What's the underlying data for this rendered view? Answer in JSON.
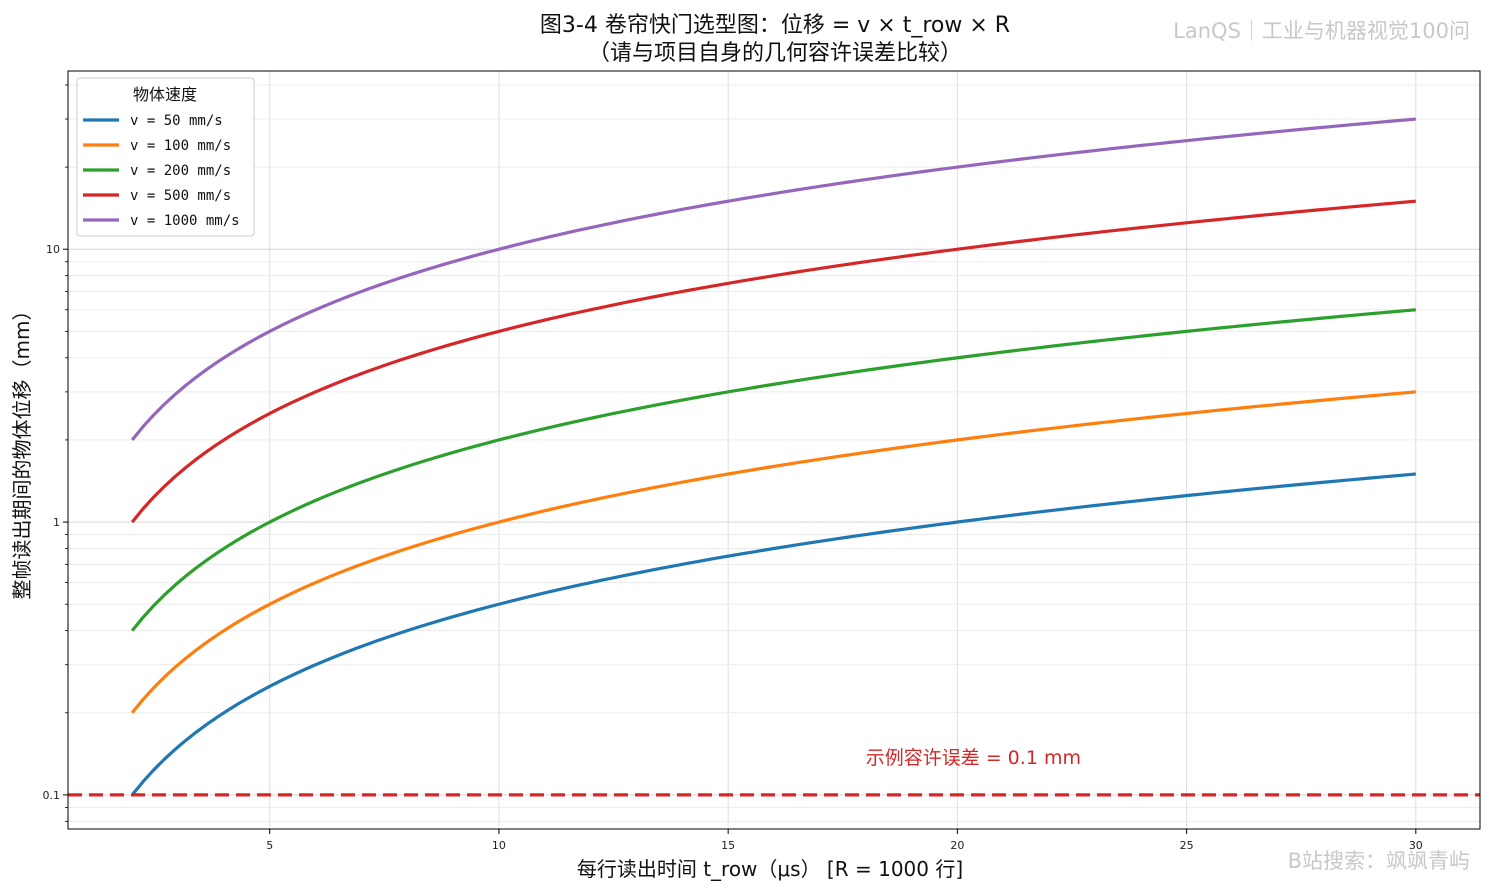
{
  "chart_data": {
    "type": "line",
    "title": "图3-4  卷帘快门选型图：位移 = v × t_row × R",
    "subtitle": "（请与项目自身的几何容许误差比较）",
    "xlabel": "每行读出时间 t_row（μs） [R = 1000 行]",
    "ylabel": "整帧读出期间的物体位移（mm）",
    "xlim": [
      0.6,
      31.4
    ],
    "ylim": [
      0.075,
      45
    ],
    "yscale": "log",
    "grid": true,
    "x_ticks": [
      5,
      10,
      15,
      20,
      25,
      30
    ],
    "x_tick_labels": [
      "5",
      "10",
      "15",
      "20",
      "25",
      "30"
    ],
    "y_ticks": [
      0.1,
      1,
      10
    ],
    "y_tick_labels": [
      "0.1",
      "1",
      "10"
    ],
    "x_range": [
      2,
      30
    ],
    "rows_R": 1000,
    "legend": {
      "title": "物体速度",
      "placement": "top-left"
    },
    "series": [
      {
        "name": "v = 50 mm/s",
        "speed_mm_s": 50,
        "color": "#1f77b4"
      },
      {
        "name": "v = 100 mm/s",
        "speed_mm_s": 100,
        "color": "#ff7f0e"
      },
      {
        "name": "v = 200 mm/s",
        "speed_mm_s": 200,
        "color": "#2ca02c"
      },
      {
        "name": "v = 500 mm/s",
        "speed_mm_s": 500,
        "color": "#d62728"
      },
      {
        "name": "v = 1000 mm/s",
        "speed_mm_s": 1000,
        "color": "#9467bd"
      }
    ],
    "reference_line": {
      "y": 0.1,
      "color": "#d62728",
      "label": "示例容许误差 = 0.1 mm",
      "label_x": 18
    }
  },
  "watermarks": {
    "top_right": "LanQS｜工业与机器视觉100问",
    "bottom_right": "B站搜索：飒飒青屿"
  }
}
